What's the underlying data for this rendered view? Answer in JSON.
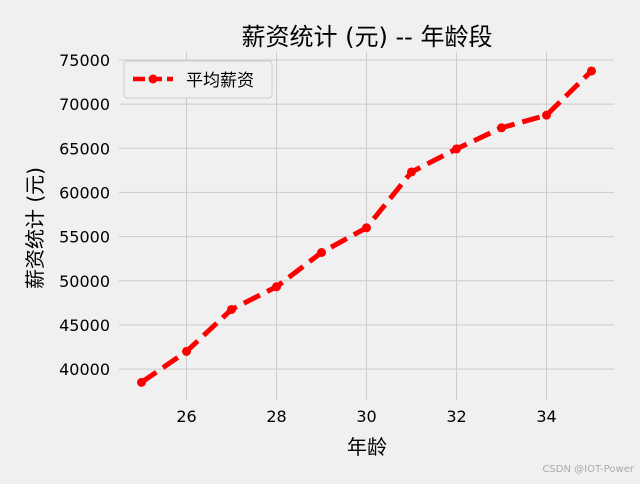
{
  "chart_data": {
    "type": "line",
    "title": "薪资统计 (元) -- 年龄段",
    "xlabel": "年龄",
    "ylabel": "薪资统计 (元)",
    "x": [
      25,
      26,
      27,
      28,
      29,
      30,
      31,
      32,
      33,
      34,
      35
    ],
    "series": [
      {
        "name": "平均薪资",
        "values": [
          38496,
          42000,
          46752,
          49320,
          53200,
          56000,
          62316,
          64928,
          67317,
          68748,
          73752
        ],
        "color": "#ff0000",
        "linestyle": "dashed",
        "marker": "circle"
      }
    ],
    "xticks": [
      "26",
      "28",
      "30",
      "32",
      "34"
    ],
    "yticks": [
      "40000",
      "45000",
      "50000",
      "55000",
      "60000",
      "65000",
      "70000",
      "75000"
    ],
    "xlim": [
      24.5,
      35.5
    ],
    "ylim": [
      36500,
      75900
    ],
    "grid": true,
    "legend_position": "top-left",
    "background_color": "#f0f0f0",
    "grid_color": "#cbcbcb"
  },
  "watermark": "CSDN @IOT-Power"
}
